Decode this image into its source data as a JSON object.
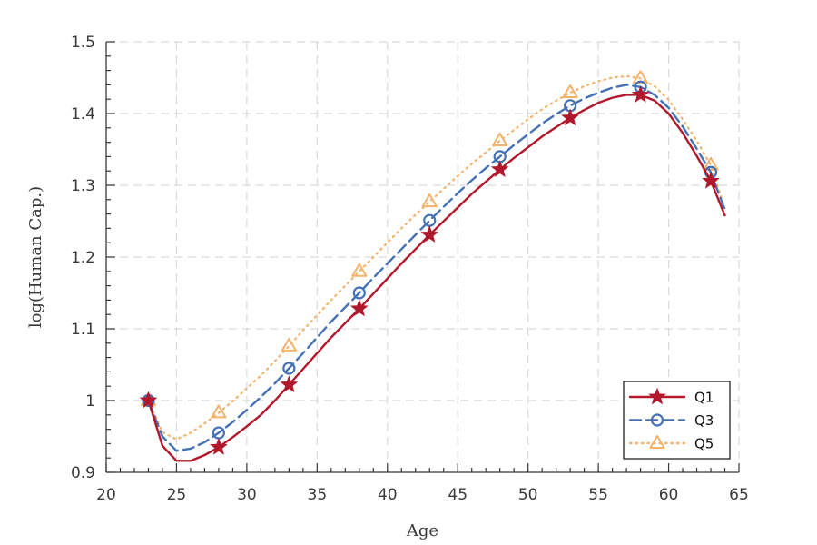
{
  "chart_data": {
    "type": "line",
    "xlabel": "Age",
    "ylabel": "log(Human Cap.)",
    "xlim": [
      20,
      65
    ],
    "ylim": [
      0.9,
      1.5
    ],
    "xticks": [
      20,
      25,
      30,
      35,
      40,
      45,
      50,
      55,
      60,
      65
    ],
    "yticks": [
      0.9,
      1.0,
      1.1,
      1.2,
      1.3,
      1.4,
      1.5
    ],
    "ytick_labels": [
      "0.9",
      "1",
      "1.1",
      "1.2",
      "1.3",
      "1.4",
      "1.5"
    ],
    "grid": true,
    "legend_position": "bottom-right",
    "series": [
      {
        "name": "Q1",
        "color": "#b2182b",
        "line_style": "solid",
        "marker": "star",
        "marker_x": [
          23,
          28,
          33,
          38,
          43,
          48,
          53,
          58,
          63
        ],
        "x": [
          23,
          24,
          25,
          26,
          27,
          28,
          29,
          30,
          31,
          32,
          33,
          34,
          35,
          36,
          37,
          38,
          39,
          40,
          41,
          42,
          43,
          44,
          45,
          46,
          47,
          48,
          49,
          50,
          51,
          52,
          53,
          54,
          55,
          56,
          57,
          58,
          59,
          60,
          61,
          62,
          63,
          64
        ],
        "values": [
          1.0,
          0.937,
          0.916,
          0.916,
          0.924,
          0.935,
          0.949,
          0.964,
          0.98,
          1.0,
          1.022,
          1.044,
          1.066,
          1.088,
          1.108,
          1.128,
          1.149,
          1.17,
          1.191,
          1.211,
          1.231,
          1.25,
          1.269,
          1.288,
          1.305,
          1.322,
          1.338,
          1.353,
          1.368,
          1.381,
          1.394,
          1.405,
          1.415,
          1.422,
          1.426,
          1.426,
          1.418,
          1.4,
          1.373,
          1.341,
          1.306,
          1.258
        ]
      },
      {
        "name": "Q3",
        "color": "#4472b4",
        "line_style": "dashed",
        "marker": "circle",
        "marker_x": [
          23,
          28,
          33,
          38,
          43,
          48,
          53,
          58,
          63
        ],
        "x": [
          23,
          24,
          25,
          26,
          27,
          28,
          29,
          30,
          31,
          32,
          33,
          34,
          35,
          36,
          37,
          38,
          39,
          40,
          41,
          42,
          43,
          44,
          45,
          46,
          47,
          48,
          49,
          50,
          51,
          52,
          53,
          54,
          55,
          56,
          57,
          58,
          59,
          60,
          61,
          62,
          63,
          64
        ],
        "values": [
          1.0,
          0.95,
          0.93,
          0.933,
          0.942,
          0.955,
          0.97,
          0.987,
          1.005,
          1.024,
          1.045,
          1.066,
          1.088,
          1.11,
          1.13,
          1.15,
          1.171,
          1.191,
          1.211,
          1.231,
          1.251,
          1.27,
          1.289,
          1.307,
          1.324,
          1.34,
          1.356,
          1.371,
          1.386,
          1.399,
          1.411,
          1.421,
          1.429,
          1.436,
          1.44,
          1.437,
          1.426,
          1.408,
          1.382,
          1.351,
          1.318,
          1.266
        ]
      },
      {
        "name": "Q5",
        "color": "#f5b26b",
        "line_style": "dotted",
        "marker": "triangle",
        "marker_x": [
          23,
          28,
          33,
          38,
          43,
          48,
          53,
          58,
          63
        ],
        "x": [
          23,
          24,
          25,
          26,
          27,
          28,
          29,
          30,
          31,
          32,
          33,
          34,
          35,
          36,
          37,
          38,
          39,
          40,
          41,
          42,
          43,
          44,
          45,
          46,
          47,
          48,
          49,
          50,
          51,
          52,
          53,
          54,
          55,
          56,
          57,
          58,
          59,
          60,
          61,
          62,
          63,
          64
        ],
        "values": [
          1.0,
          0.956,
          0.946,
          0.955,
          0.968,
          0.983,
          0.999,
          1.017,
          1.035,
          1.055,
          1.076,
          1.098,
          1.119,
          1.14,
          1.16,
          1.18,
          1.2,
          1.22,
          1.24,
          1.259,
          1.277,
          1.295,
          1.313,
          1.33,
          1.346,
          1.362,
          1.377,
          1.392,
          1.406,
          1.418,
          1.429,
          1.438,
          1.445,
          1.45,
          1.452,
          1.449,
          1.438,
          1.419,
          1.392,
          1.362,
          1.328,
          1.268
        ]
      }
    ]
  }
}
